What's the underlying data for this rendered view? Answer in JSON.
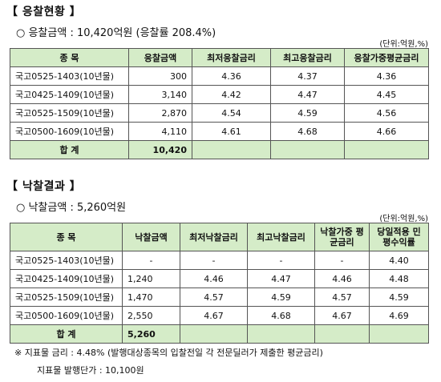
{
  "section1": {
    "title": "【 응찰현황 】",
    "summary": "○ 응찰금액 : 10,420억원 (응찰률 208.4%)",
    "unit": "(단위:억원,%)",
    "headers": [
      "종 목",
      "응찰금액",
      "최저응찰금리",
      "최고응찰금리",
      "응찰가중평균금리"
    ],
    "rows": [
      [
        "국고0525-1403(10년물)",
        "300",
        "4.36",
        "4.37",
        "4.36"
      ],
      [
        "국고0425-1409(10년물)",
        "3,140",
        "4.42",
        "4.47",
        "4.45"
      ],
      [
        "국고0525-1509(10년물)",
        "2,870",
        "4.54",
        "4.59",
        "4.56"
      ],
      [
        "국고0500-1609(10년물)",
        "4,110",
        "4.61",
        "4.68",
        "4.66"
      ]
    ],
    "total": [
      "합 계",
      "10,420",
      "",
      "",
      ""
    ]
  },
  "section2": {
    "title": "【 낙찰결과 】",
    "summary": "○ 낙찰금액 : 5,260억원",
    "unit": "(단위:억원,%)",
    "headers": [
      "종 목",
      "낙찰금액",
      "최저낙찰금리",
      "최고낙찰금리",
      "낙찰가중 평균금리",
      "당일적용 민평수익률"
    ],
    "rows": [
      [
        "국고0525-1403(10년물)",
        "-",
        "-",
        "-",
        "-",
        "4.40"
      ],
      [
        "국고0425-1409(10년물)",
        "1,240",
        "4.46",
        "4.47",
        "4.46",
        "4.48"
      ],
      [
        "국고0525-1509(10년물)",
        "1,470",
        "4.57",
        "4.59",
        "4.57",
        "4.59"
      ],
      [
        "국고0500-1609(10년물)",
        "2,550",
        "4.67",
        "4.68",
        "4.67",
        "4.69"
      ]
    ],
    "total": [
      "합 계",
      "5,260",
      "",
      "",
      "",
      ""
    ]
  },
  "notes": {
    "line1": "※ 지표물 금리 : 4.48% (발행대상종목의 입찰전일 각 전문딜러가 제출한 평균금리)",
    "line2": "지표물 발행단가 : 10,100원"
  }
}
